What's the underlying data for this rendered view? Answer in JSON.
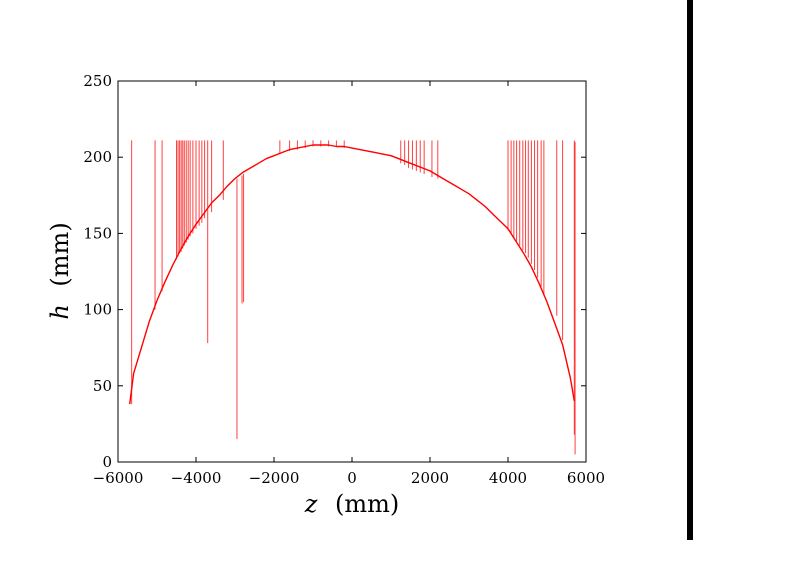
{
  "chart_data": {
    "type": "line",
    "title": "",
    "xlabel": {
      "var": "z",
      "unit": "(mm)"
    },
    "ylabel": {
      "var": "h",
      "unit": "(mm)"
    },
    "xlim": [
      -6000,
      6000
    ],
    "ylim": [
      0,
      250
    ],
    "xticks": [
      -6000,
      -4000,
      -2000,
      0,
      2000,
      4000,
      6000
    ],
    "xtick_labels": [
      "−6000",
      "−4000",
      "−2000",
      "0",
      "2000",
      "4000",
      "6000"
    ],
    "yticks": [
      0,
      50,
      100,
      150,
      200,
      250
    ],
    "ytick_labels": [
      "0",
      "50",
      "100",
      "150",
      "200",
      "250"
    ],
    "grid": false,
    "legend": "none",
    "series": [
      {
        "color": "#ff0000",
        "x": [
          -5700,
          -5600,
          -5400,
          -5200,
          -5000,
          -4800,
          -4600,
          -4400,
          -4200,
          -4000,
          -3800,
          -3600,
          -3400,
          -3200,
          -3000,
          -2800,
          -2600,
          -2400,
          -2200,
          -2000,
          -1800,
          -1600,
          -1400,
          -1200,
          -1000,
          -800,
          -600,
          -400,
          -200,
          0,
          200,
          400,
          600,
          800,
          1000,
          1200,
          1400,
          1600,
          1800,
          2000,
          2200,
          2400,
          2600,
          2800,
          3000,
          3200,
          3400,
          3600,
          3800,
          4000,
          4200,
          4400,
          4600,
          4800,
          5000,
          5200,
          5400,
          5600,
          5700
        ],
        "y": [
          38,
          58,
          75,
          92,
          106,
          118,
          129,
          139,
          148,
          156,
          163,
          170,
          175,
          181,
          186,
          190,
          193,
          196,
          199,
          201,
          203,
          205,
          206,
          207,
          208,
          208,
          208,
          207,
          207,
          206,
          205,
          204,
          203,
          202,
          201,
          199,
          197,
          195,
          193,
          191,
          188,
          185,
          182,
          179,
          176,
          172,
          168,
          163,
          158,
          153,
          145,
          137,
          128,
          117,
          105,
          91,
          77,
          55,
          40
        ]
      }
    ],
    "spikes": [
      {
        "x": -5650,
        "low": 38,
        "high": 211
      },
      {
        "x": -5050,
        "low": 100,
        "high": 211
      },
      {
        "x": -4870,
        "low": 112,
        "high": 211
      },
      {
        "x": -4500,
        "low": 133,
        "high": 211
      },
      {
        "x": -4460,
        "low": 135,
        "high": 211
      },
      {
        "x": -4420,
        "low": 137,
        "high": 211
      },
      {
        "x": -4380,
        "low": 138,
        "high": 211
      },
      {
        "x": -4340,
        "low": 140,
        "high": 211
      },
      {
        "x": -4300,
        "low": 142,
        "high": 211
      },
      {
        "x": -4250,
        "low": 144,
        "high": 211
      },
      {
        "x": -4200,
        "low": 146,
        "high": 211
      },
      {
        "x": -4150,
        "low": 148,
        "high": 211
      },
      {
        "x": -4080,
        "low": 150,
        "high": 211
      },
      {
        "x": -4000,
        "low": 153,
        "high": 211
      },
      {
        "x": -3920,
        "low": 155,
        "high": 211
      },
      {
        "x": -3850,
        "low": 157,
        "high": 211
      },
      {
        "x": -3780,
        "low": 160,
        "high": 211
      },
      {
        "x": -3700,
        "low": 78,
        "high": 211
      },
      {
        "x": -3600,
        "low": 164,
        "high": 211
      },
      {
        "x": -3300,
        "low": 172,
        "high": 211
      },
      {
        "x": -2950,
        "low": 15,
        "high": 186
      },
      {
        "x": -2820,
        "low": 104,
        "high": 188
      },
      {
        "x": -2780,
        "low": 105,
        "high": 189
      },
      {
        "x": -1850,
        "low": 202,
        "high": 211
      },
      {
        "x": -1600,
        "low": 204,
        "high": 211
      },
      {
        "x": -1400,
        "low": 205,
        "high": 211
      },
      {
        "x": -1200,
        "low": 206,
        "high": 211
      },
      {
        "x": -1000,
        "low": 207,
        "high": 211
      },
      {
        "x": -800,
        "low": 207,
        "high": 211
      },
      {
        "x": -600,
        "low": 207,
        "high": 211
      },
      {
        "x": -400,
        "low": 207,
        "high": 211
      },
      {
        "x": -200,
        "low": 206,
        "high": 211
      },
      {
        "x": 1250,
        "low": 196,
        "high": 211
      },
      {
        "x": 1350,
        "low": 195,
        "high": 211
      },
      {
        "x": 1450,
        "low": 193,
        "high": 211
      },
      {
        "x": 1550,
        "low": 192,
        "high": 211
      },
      {
        "x": 1650,
        "low": 191,
        "high": 211
      },
      {
        "x": 1750,
        "low": 190,
        "high": 211
      },
      {
        "x": 1850,
        "low": 189,
        "high": 211
      },
      {
        "x": 2050,
        "low": 187,
        "high": 211
      },
      {
        "x": 2200,
        "low": 186,
        "high": 211
      },
      {
        "x": 4000,
        "low": 152,
        "high": 211
      },
      {
        "x": 4080,
        "low": 150,
        "high": 211
      },
      {
        "x": 4150,
        "low": 147,
        "high": 211
      },
      {
        "x": 4220,
        "low": 145,
        "high": 211
      },
      {
        "x": 4300,
        "low": 142,
        "high": 211
      },
      {
        "x": 4380,
        "low": 139,
        "high": 211
      },
      {
        "x": 4450,
        "low": 137,
        "high": 211
      },
      {
        "x": 4520,
        "low": 134,
        "high": 211
      },
      {
        "x": 4600,
        "low": 130,
        "high": 211
      },
      {
        "x": 4680,
        "low": 126,
        "high": 211
      },
      {
        "x": 4760,
        "low": 121,
        "high": 211
      },
      {
        "x": 4850,
        "low": 115,
        "high": 211
      },
      {
        "x": 4920,
        "low": 110,
        "high": 211
      },
      {
        "x": 5250,
        "low": 96,
        "high": 211
      },
      {
        "x": 5400,
        "low": 80,
        "high": 211
      },
      {
        "x": 5700,
        "low": 18,
        "high": 211
      },
      {
        "x": 5720,
        "low": 5,
        "high": 210
      }
    ]
  }
}
